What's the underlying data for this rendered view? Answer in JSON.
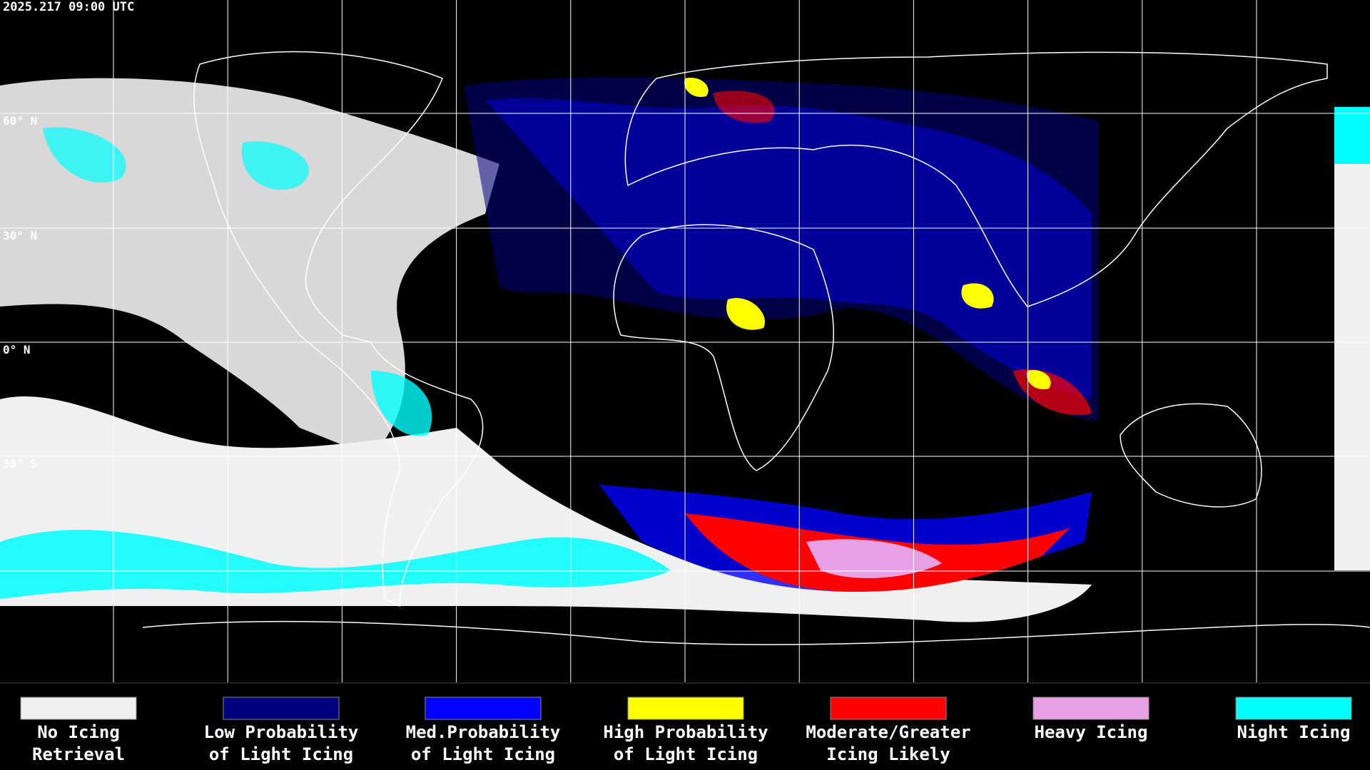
{
  "header": {
    "title": "2025.217 09:00 UTC"
  },
  "map": {
    "latitude_labels": [
      "60° N",
      "30° N",
      "0° N",
      "30° S"
    ]
  },
  "legend": {
    "items": [
      {
        "lines": [
          "No Icing",
          "Retrieval"
        ],
        "color": "#f0f0f0"
      },
      {
        "lines": [
          "Low Probability",
          "of Light Icing"
        ],
        "color": "#00007f"
      },
      {
        "lines": [
          "Med.Probability",
          "of Light Icing"
        ],
        "color": "#0000ff"
      },
      {
        "lines": [
          "High Probability",
          "of Light Icing"
        ],
        "color": "#ffff00"
      },
      {
        "lines": [
          "Moderate/Greater",
          "Icing Likely"
        ],
        "color": "#ff0000"
      },
      {
        "lines": [
          "Heavy Icing"
        ],
        "color": "#e8a0e4"
      },
      {
        "lines": [
          "Night Icing"
        ],
        "color": "#00ffff"
      }
    ]
  }
}
